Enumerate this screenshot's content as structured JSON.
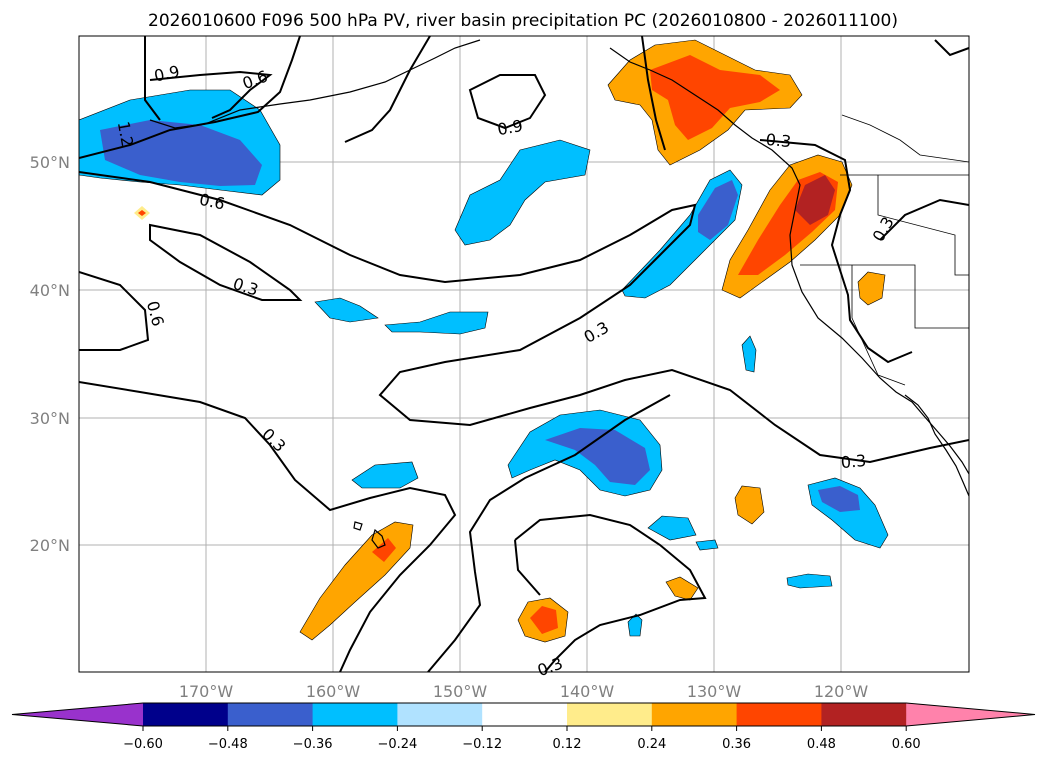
{
  "title": "2026010600 F096 500 hPa PV, river basin precipitation PC (2026010800 - 2026011100)",
  "map": {
    "lon_labels": [
      "170°W",
      "160°W",
      "150°W",
      "140°W",
      "130°W",
      "120°W"
    ],
    "lat_labels": [
      "50°N",
      "40°N",
      "30°N",
      "20°N"
    ]
  },
  "contour_labels": [
    "0.9",
    "0.6",
    "1.2",
    "0.6",
    "0.3",
    "0.6",
    "0.9",
    "0.3",
    "0.3",
    "0.3",
    "0.3",
    "0.3",
    "0.3"
  ],
  "colorbar": {
    "ticks": [
      "−0.60",
      "−0.48",
      "−0.36",
      "−0.24",
      "−0.12",
      "0.12",
      "0.24",
      "0.36",
      "0.48",
      "0.60"
    ],
    "colors": [
      "#9932cc",
      "#00008b",
      "#3a5fcd",
      "#00bfff",
      "#b0e2ff",
      "#ffffff",
      "#ffec8b",
      "#ffa500",
      "#ff4500",
      "#b22222",
      "#ff82ab"
    ]
  }
}
